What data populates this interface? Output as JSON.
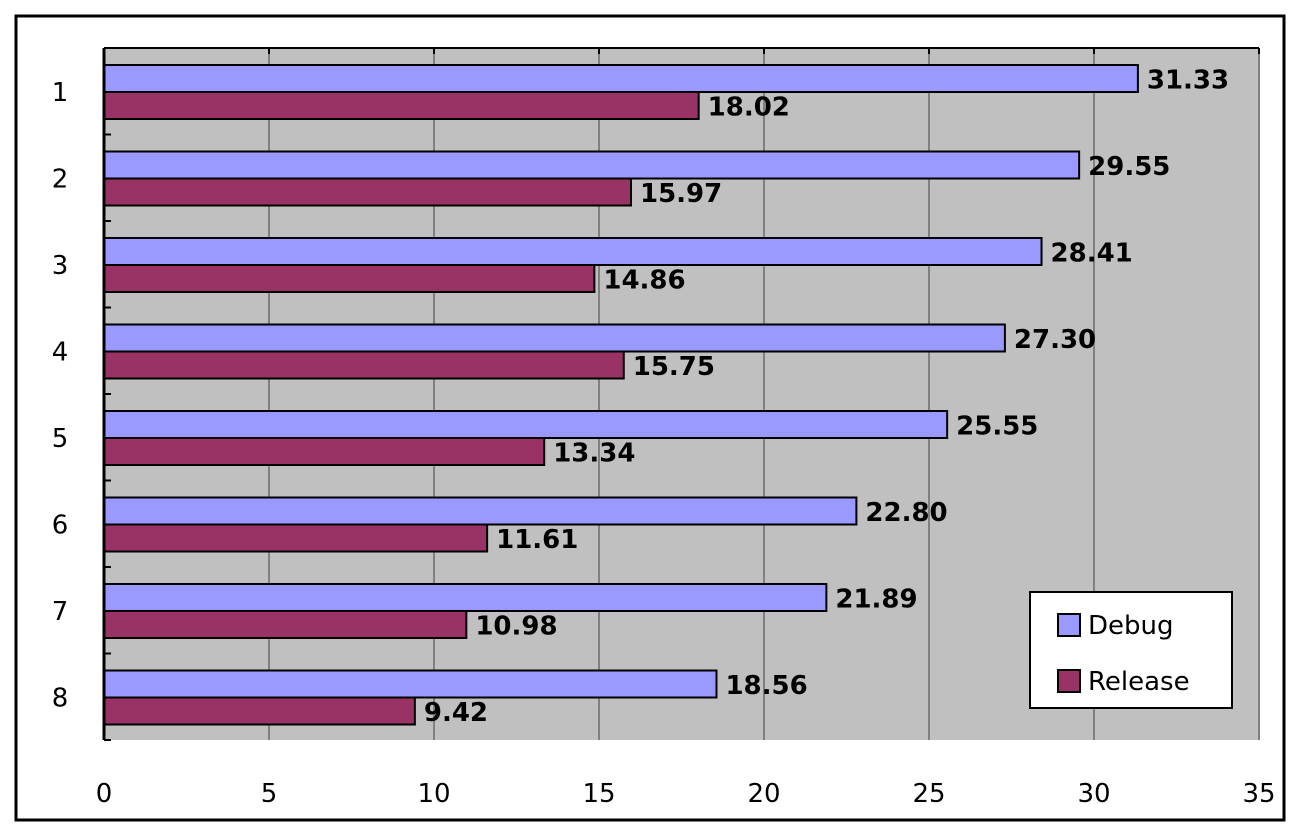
{
  "chart_data": {
    "type": "bar",
    "orientation": "horizontal",
    "title": "",
    "xlabel": "",
    "ylabel": "",
    "categories": [
      "1",
      "2",
      "3",
      "4",
      "5",
      "6",
      "7",
      "8"
    ],
    "series": [
      {
        "name": "Debug",
        "color": "#9999ff",
        "values": [
          31.33,
          29.55,
          28.41,
          27.3,
          25.55,
          22.8,
          21.89,
          18.56
        ],
        "labels": [
          "31.33",
          "29.55",
          "28.41",
          "27.30",
          "25.55",
          "22.80",
          "21.89",
          "18.56"
        ]
      },
      {
        "name": "Release",
        "color": "#993366",
        "values": [
          18.02,
          15.97,
          14.86,
          15.75,
          13.34,
          11.61,
          10.98,
          9.42
        ],
        "labels": [
          "18.02",
          "15.97",
          "14.86",
          "15.75",
          "13.34",
          "11.61",
          "10.98",
          "9.42"
        ]
      }
    ],
    "xlim": [
      0,
      35
    ],
    "xticks": [
      0,
      5,
      10,
      15,
      20,
      25,
      30,
      35
    ],
    "xtick_labels": [
      "0",
      "5",
      "10",
      "15",
      "20",
      "25",
      "30",
      "35"
    ],
    "grid": "vertical",
    "plot_background": "#c0c0c0",
    "legend": {
      "position": "bottom-right",
      "items": [
        "Debug",
        "Release"
      ]
    }
  }
}
